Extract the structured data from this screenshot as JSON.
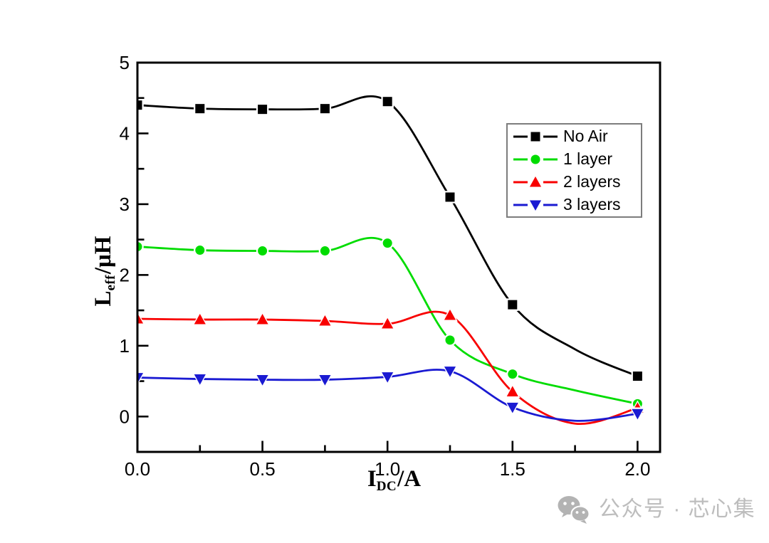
{
  "chart_data": {
    "type": "line",
    "title": "",
    "xlabel": {
      "main": "I",
      "sub": "DC",
      "unit": "/A"
    },
    "ylabel": {
      "main": "L",
      "sub": "eff",
      "unit": "/μH"
    },
    "xlim": [
      0,
      2.09
    ],
    "ylim": [
      -0.5,
      5
    ],
    "grid": false,
    "legend_position": "upper-right",
    "x_ticks": {
      "major": [
        0,
        0.5,
        1.0,
        1.5,
        2.0
      ],
      "labels": [
        "0.0",
        "0.5",
        "1.0",
        "1.5",
        "2.0"
      ],
      "minor": [
        0.25,
        0.75,
        1.25,
        1.75
      ]
    },
    "y_ticks": {
      "major": [
        0,
        1,
        2,
        3,
        4,
        5
      ],
      "labels": [
        "0",
        "1",
        "2",
        "3",
        "4",
        "5"
      ],
      "minor": [
        0.5,
        1.5,
        2.5,
        3.5,
        4.5
      ]
    },
    "x": [
      0,
      0.25,
      0.5,
      0.75,
      1.0,
      1.25,
      1.5,
      2.0
    ],
    "series": [
      {
        "name": "No Air",
        "color": "#000000",
        "marker": "square",
        "values": [
          4.4,
          4.35,
          4.34,
          4.35,
          4.45,
          3.1,
          1.58,
          0.57
        ],
        "curve_extra": [
          {
            "x": 1.75,
            "y": 0.95
          }
        ]
      },
      {
        "name": "1 layer",
        "color": "#00DC00",
        "marker": "circle",
        "values": [
          2.4,
          2.35,
          2.34,
          2.34,
          2.45,
          1.08,
          0.6,
          0.18
        ],
        "curve_extra": [
          {
            "x": 1.75,
            "y": 0.37
          }
        ]
      },
      {
        "name": "2 layers",
        "color": "#F80000",
        "marker": "triangle-up",
        "values": [
          1.38,
          1.37,
          1.37,
          1.35,
          1.31,
          1.43,
          0.35,
          0.12
        ],
        "curve_extra": [
          {
            "x": 1.75,
            "y": -0.1
          }
        ]
      },
      {
        "name": "3 layers",
        "color": "#1A1AD2",
        "marker": "triangle-down",
        "values": [
          0.55,
          0.53,
          0.52,
          0.52,
          0.56,
          0.64,
          0.13,
          0.04
        ],
        "curve_extra": [
          {
            "x": 1.75,
            "y": -0.06
          }
        ]
      }
    ]
  },
  "watermark": {
    "icon": "wechat-icon",
    "text": "公众号 · 芯心集",
    "color": "#bdbdbd"
  }
}
